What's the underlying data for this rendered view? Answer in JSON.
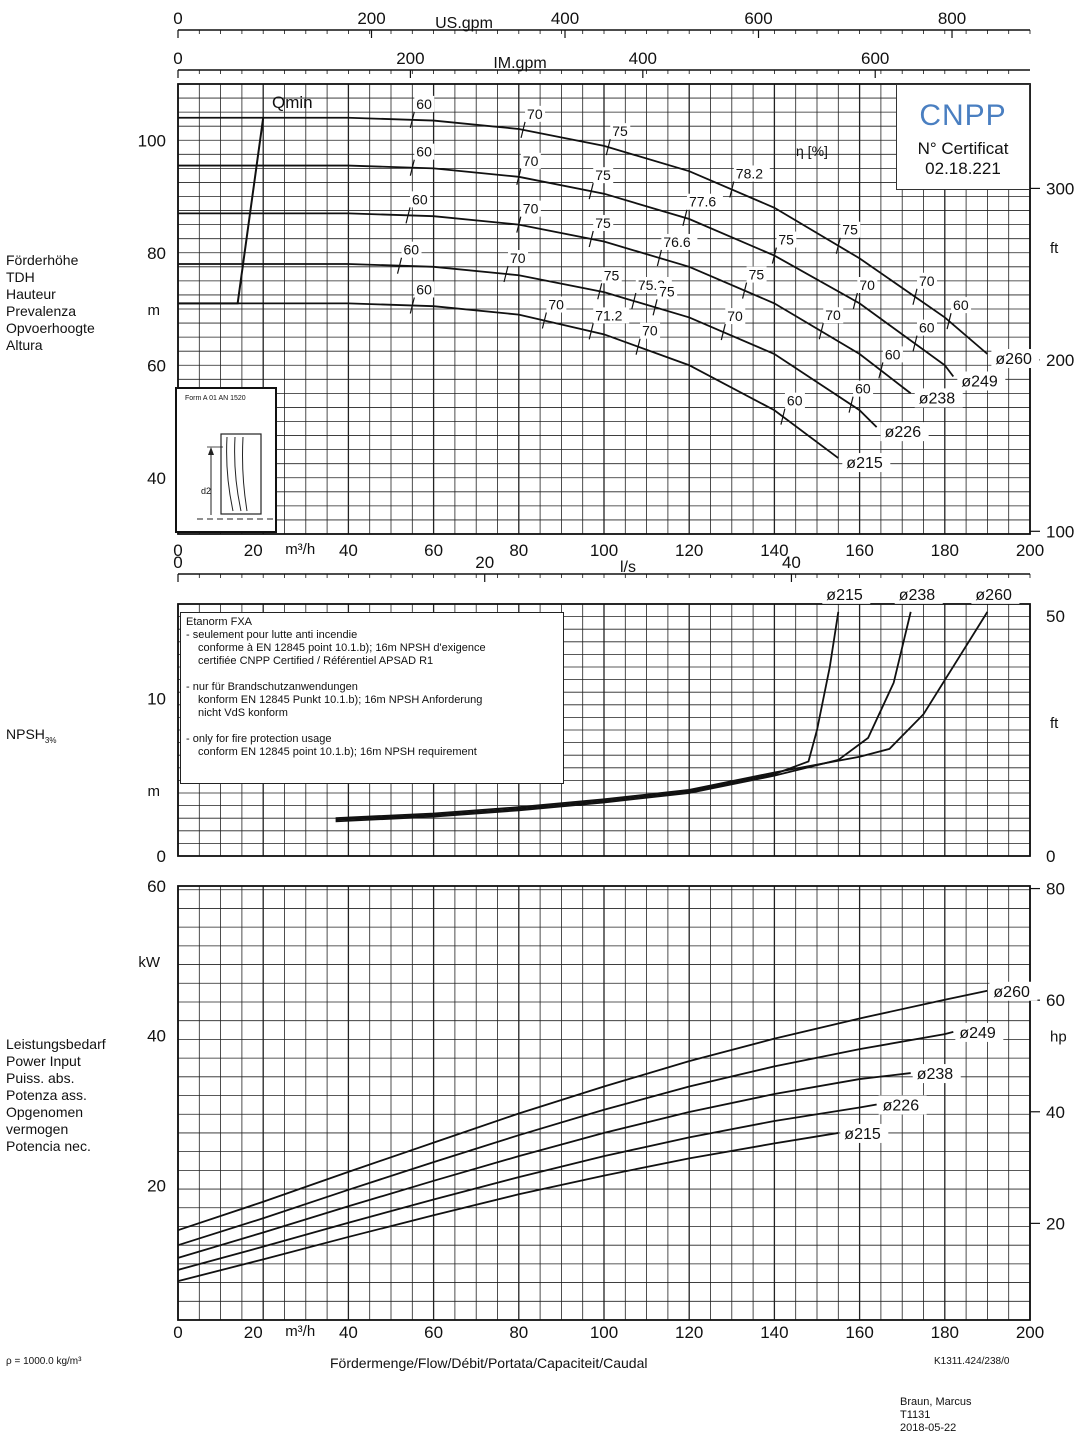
{
  "chart_data": [
    {
      "type": "line",
      "panel": "head",
      "xlabel": "m³/h",
      "ylabel_lines": [
        "Förderhöhe",
        "TDH",
        "Hauteur",
        "Prevalenza",
        "Opvoerhoogte",
        "Altura"
      ],
      "yunit": "m",
      "yunit_right": "ft",
      "xlim": [
        0,
        200
      ],
      "ylim": [
        30,
        110
      ],
      "x_ticks": [
        0,
        20,
        40,
        60,
        80,
        100,
        120,
        140,
        160,
        180,
        200
      ],
      "y_ticks": [
        40,
        60,
        80,
        100
      ],
      "y2_ticks": [
        100,
        200,
        300
      ],
      "top_axis_usgpm": {
        "label": "US.gpm",
        "ticks": [
          0,
          200,
          400,
          600,
          800
        ]
      },
      "top_axis_imgpm": {
        "label": "IM.gpm",
        "ticks": [
          0,
          200,
          400,
          600
        ]
      },
      "qmin_label": "Qmin",
      "eta_label": "η [%]",
      "series": [
        {
          "name": "ø260",
          "x": [
            0,
            20,
            40,
            60,
            80,
            100,
            120,
            140,
            160,
            180,
            190
          ],
          "y": [
            104,
            104,
            104,
            103.5,
            102,
            99,
            94.5,
            88,
            79,
            68.5,
            62
          ]
        },
        {
          "name": "ø249",
          "x": [
            0,
            20,
            40,
            60,
            80,
            100,
            120,
            140,
            160,
            180,
            182
          ],
          "y": [
            95.5,
            95.5,
            95.5,
            95,
            93.5,
            90.5,
            86,
            79.5,
            71,
            60,
            58
          ]
        },
        {
          "name": "ø238",
          "x": [
            0,
            20,
            40,
            60,
            80,
            100,
            120,
            140,
            160,
            172
          ],
          "y": [
            87,
            87,
            87,
            86.5,
            85,
            82,
            77.5,
            71,
            62,
            55
          ]
        },
        {
          "name": "ø226",
          "x": [
            0,
            20,
            40,
            60,
            80,
            100,
            120,
            140,
            160,
            164
          ],
          "y": [
            78,
            78,
            78,
            77.5,
            76,
            73,
            68.5,
            62,
            52,
            49
          ]
        },
        {
          "name": "ø215",
          "x": [
            0,
            20,
            40,
            60,
            80,
            100,
            120,
            140,
            155
          ],
          "y": [
            71,
            71,
            71,
            70.5,
            69,
            65.5,
            60,
            52,
            43.5
          ]
        }
      ],
      "qmin_line": {
        "x": [
          14,
          20
        ],
        "y": [
          71,
          104
        ]
      },
      "efficiency_labels": [
        "60",
        "70",
        "75",
        "78.2",
        "75",
        "70",
        "60",
        "60",
        "70",
        "75",
        "77.6",
        "75",
        "70",
        "60",
        "60",
        "70",
        "75",
        "76.6",
        "75",
        "70",
        "60",
        "60",
        "70",
        "75",
        "75.3",
        "75",
        "70",
        "60",
        "60",
        "70",
        "71.2",
        "70",
        "60"
      ],
      "certificate": {
        "logo": "CNPP",
        "text": "N° Certificat",
        "number": "02.18.221"
      },
      "inset_label": "Form A 01 AN 1520",
      "inset_dim": "d2"
    },
    {
      "type": "line",
      "panel": "npsh",
      "ylabel": "NPSH",
      "ylabel_sub": "3%",
      "yunit": "m",
      "yunit_right": "ft",
      "top_axis_ls": {
        "label": "l/s",
        "ticks": [
          0,
          20,
          40
        ]
      },
      "y_ticks": [
        0,
        10
      ],
      "y2_ticks": [
        0,
        50
      ],
      "xlim": [
        0,
        200
      ],
      "ylim": [
        0,
        16
      ],
      "series": [
        {
          "name": "ø215",
          "x": [
            37,
            60,
            80,
            100,
            120,
            140,
            148,
            150,
            153,
            155
          ],
          "y": [
            2.3,
            2.6,
            3,
            3.5,
            4.1,
            5.2,
            6,
            8,
            12,
            15.5
          ]
        },
        {
          "name": "ø238",
          "x": [
            37,
            60,
            80,
            100,
            120,
            140,
            155,
            162,
            168,
            172
          ],
          "y": [
            2.2,
            2.5,
            2.9,
            3.4,
            4,
            5.1,
            6.1,
            7.5,
            11,
            15.5
          ]
        },
        {
          "name": "ø260",
          "x": [
            37,
            60,
            80,
            100,
            120,
            140,
            160,
            167,
            175,
            190
          ],
          "y": [
            2.4,
            2.7,
            3.1,
            3.6,
            4.2,
            5.3,
            6.3,
            6.8,
            9,
            15.5
          ]
        }
      ]
    },
    {
      "type": "line",
      "panel": "power",
      "xlabel": "m³/h",
      "ylabel_lines": [
        "Leistungsbedarf",
        "Power Input",
        "Puiss. abs.",
        "Potenza ass.",
        "Opgenomen",
        "vermogen",
        "Potencia nec."
      ],
      "yunit": "kW",
      "yunit_right": "hp",
      "xlim": [
        0,
        200
      ],
      "ylim": [
        2,
        60
      ],
      "x_ticks": [
        0,
        20,
        40,
        60,
        80,
        100,
        120,
        140,
        160,
        180,
        200
      ],
      "y_ticks": [
        20,
        40,
        60
      ],
      "y2_ticks": [
        20,
        40,
        60,
        80
      ],
      "series": [
        {
          "name": "ø260",
          "x": [
            0,
            20,
            40,
            60,
            80,
            100,
            120,
            140,
            160,
            180,
            190
          ],
          "y": [
            14,
            17.8,
            21.8,
            25.7,
            29.6,
            33.2,
            36.6,
            39.6,
            42.3,
            44.8,
            46
          ]
        },
        {
          "name": "ø249",
          "x": [
            0,
            20,
            40,
            60,
            80,
            100,
            120,
            140,
            160,
            180,
            182
          ],
          "y": [
            12,
            15.6,
            19.4,
            23.1,
            26.7,
            30.1,
            33.2,
            35.9,
            38.2,
            40.2,
            40.5
          ]
        },
        {
          "name": "ø238",
          "x": [
            0,
            20,
            40,
            60,
            80,
            100,
            120,
            140,
            160,
            172
          ],
          "y": [
            10.3,
            13.7,
            17.2,
            20.6,
            23.9,
            27,
            29.8,
            32.2,
            34.2,
            35
          ]
        },
        {
          "name": "ø226",
          "x": [
            0,
            20,
            40,
            60,
            80,
            100,
            120,
            140,
            160,
            164
          ],
          "y": [
            8.7,
            11.8,
            15,
            18.1,
            21.1,
            23.9,
            26.4,
            28.6,
            30.4,
            30.8
          ]
        },
        {
          "name": "ø215",
          "x": [
            0,
            20,
            40,
            60,
            80,
            100,
            120,
            140,
            155
          ],
          "y": [
            7.2,
            10.1,
            13.1,
            16,
            18.8,
            21.3,
            23.6,
            25.6,
            27
          ]
        }
      ]
    }
  ],
  "note": {
    "title": "Etanorm FXA",
    "lines_fr": [
      "- seulement pour lutte anti incendie",
      "conforme à EN 12845 point 10.1.b); 16m NPSH d'exigence",
      "certifiée CNPP Certified / Référentiel APSAD R1"
    ],
    "lines_de": [
      "- nur für Brandschutzanwendungen",
      "konform EN 12845 Punkt 10.1.b); 16m NPSH Anforderung",
      "nicht VdS konform"
    ],
    "lines_en": [
      "- only for fire protection usage",
      "conform EN 12845 point 10.1.b); 16m NPSH requirement"
    ]
  },
  "footer": {
    "density": "ρ = 1000.0 kg/m³",
    "flow_label": "Fördermenge/Flow/Débit/Portata/Capaciteit/Caudal",
    "ref": "K1311.424/238/0",
    "author": "Braun, Marcus",
    "code": "T1131",
    "date": "2018-05-22"
  }
}
